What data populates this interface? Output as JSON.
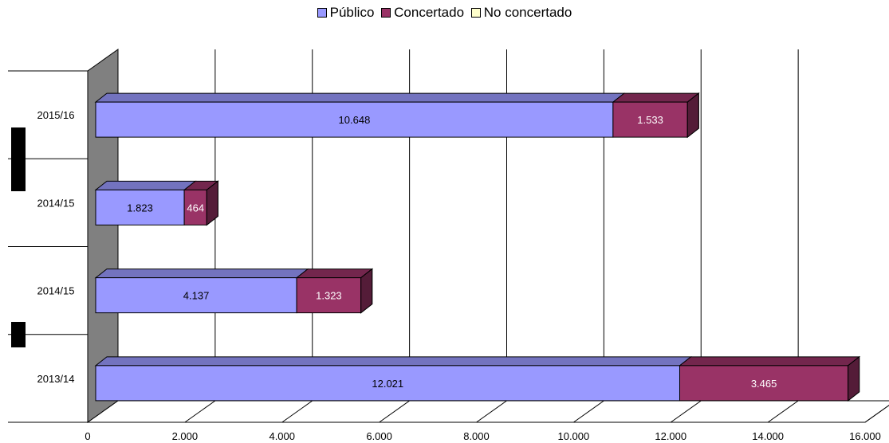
{
  "chart_data": {
    "type": "bar",
    "orientation": "horizontal",
    "stacked": true,
    "three_d": true,
    "title": "",
    "xlabel": "",
    "ylabel": "",
    "categories": [
      "2013/14",
      "2014/15",
      "2014/15",
      "2015/16"
    ],
    "series": [
      {
        "name": "Público",
        "color": "#9999ff",
        "values": [
          12021,
          4137,
          1823,
          10648
        ],
        "labels": [
          "12.021",
          "4.137",
          "1.823",
          "10.648"
        ]
      },
      {
        "name": "Concertado",
        "color": "#993366",
        "values": [
          3465,
          1323,
          464,
          1533
        ],
        "labels": [
          "3.465",
          "1.323",
          "464",
          "1.533"
        ]
      },
      {
        "name": "No concertado",
        "color": "#ffffcc",
        "values": [
          0,
          0,
          0,
          0
        ],
        "labels": [
          "",
          "",
          "",
          ""
        ]
      }
    ],
    "xlim": [
      0,
      16000
    ],
    "xticks": [
      0,
      2000,
      4000,
      6000,
      8000,
      10000,
      12000,
      14000,
      16000
    ],
    "xtick_labels": [
      "0",
      "2.000",
      "4.000",
      "6.000",
      "8.000",
      "10.000",
      "12.000",
      "14.000",
      "16.000"
    ],
    "grid": true,
    "legend_position": "top"
  }
}
